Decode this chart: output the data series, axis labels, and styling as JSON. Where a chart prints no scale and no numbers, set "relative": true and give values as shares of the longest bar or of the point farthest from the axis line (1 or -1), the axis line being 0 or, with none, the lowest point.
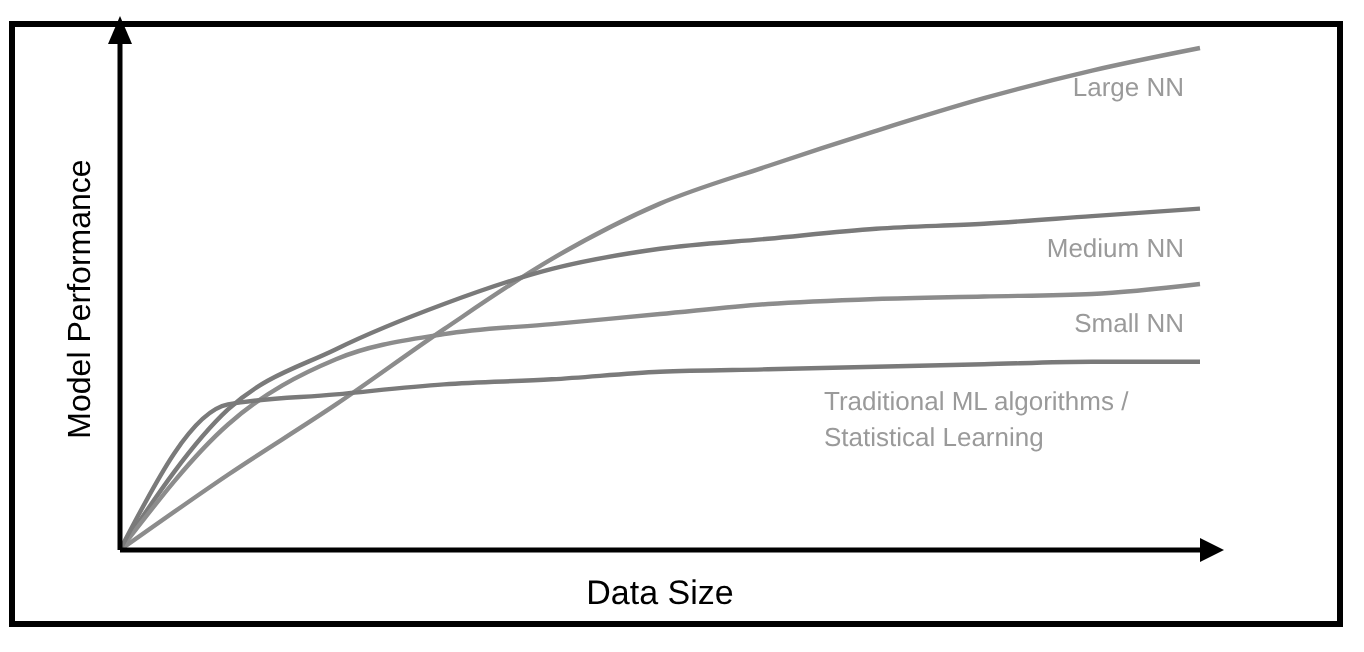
{
  "chart_data": {
    "type": "line",
    "relative": true,
    "xlabel": "Data Size",
    "ylabel": "Model Performance",
    "categories": [
      null,
      null,
      null,
      null,
      null,
      null,
      null,
      null,
      null,
      null,
      null
    ],
    "series": [
      {
        "name": "Large NN",
        "color": "#8c8c8c",
        "values": [
          0,
          0.15,
          0.29,
          0.44,
          0.58,
          0.69,
          0.765,
          0.835,
          0.9,
          0.955,
          1
        ]
      },
      {
        "name": "Medium NN",
        "color": "#7a7a7a",
        "values": [
          0,
          0.28,
          0.4,
          0.49,
          0.56,
          0.6,
          0.62,
          0.64,
          0.65,
          0.665,
          0.68
        ]
      },
      {
        "name": "Small NN",
        "color": "#8c8c8c",
        "values": [
          0,
          0.25,
          0.38,
          0.43,
          0.45,
          0.47,
          0.49,
          0.5,
          0.505,
          0.51,
          0.53
        ]
      },
      {
        "name": "Traditional ML algorithms / Statistical Learning",
        "color": "#7a7a7a",
        "values": [
          0,
          0.29,
          0.31,
          0.33,
          0.34,
          0.355,
          0.36,
          0.365,
          0.37,
          0.375,
          0.375
        ]
      }
    ]
  }
}
